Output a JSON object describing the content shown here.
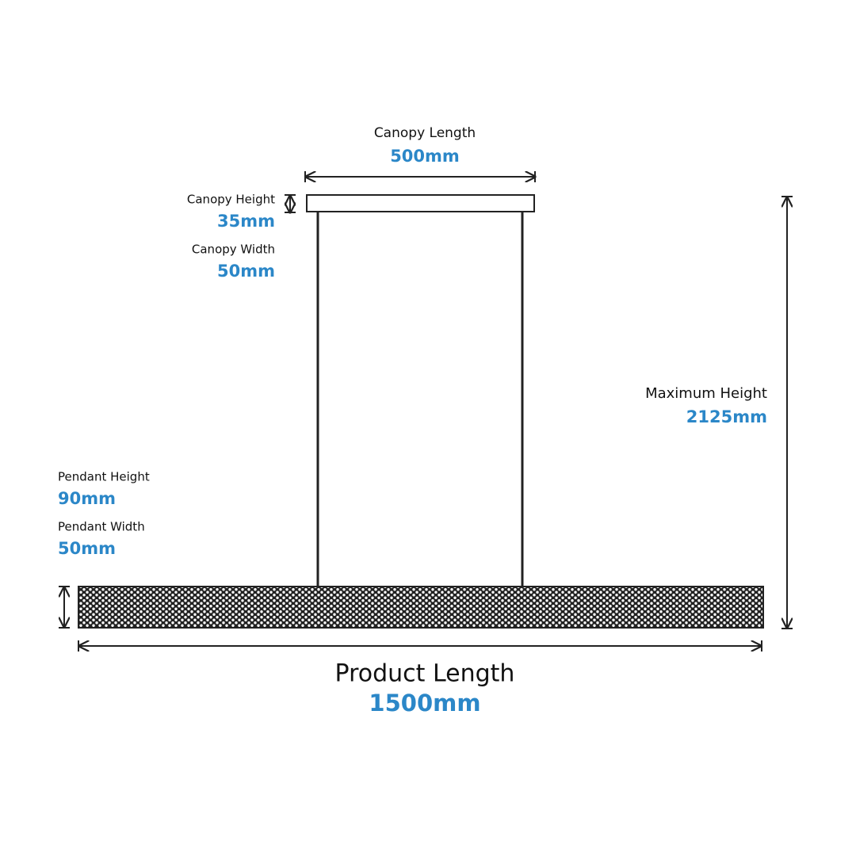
{
  "dimensions": [
    {
      "label": "Canopy Length",
      "value": "500mm"
    },
    {
      "label": "Canopy Height",
      "value": "35mm"
    },
    {
      "label": "Canopy Width",
      "value": "50mm"
    },
    {
      "label": "Maximum Height",
      "value": "2125mm"
    },
    {
      "label": "Pendant Height",
      "value": "90mm"
    },
    {
      "label": "Pendant Width",
      "value": "50mm"
    },
    {
      "label": "Product Length",
      "value": "1500mm"
    }
  ]
}
